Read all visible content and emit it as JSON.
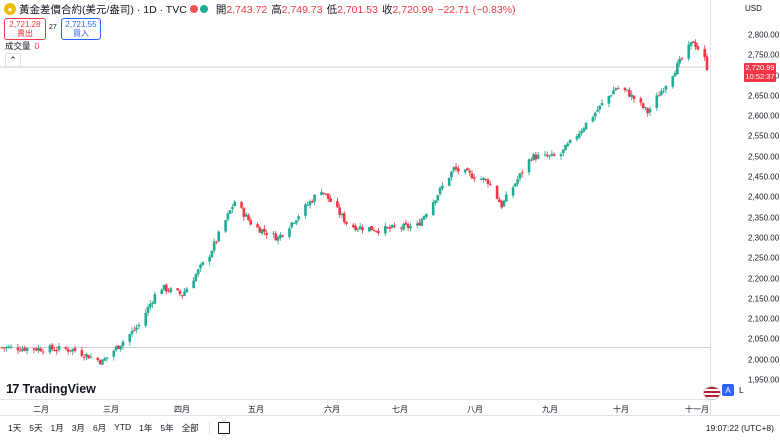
{
  "header": {
    "title": "黃金差價合約(美元/盎司) · 1D · TVC",
    "ohlc": [
      {
        "k": "開",
        "v": "2,743.72"
      },
      {
        "k": "高",
        "v": "2,749.73"
      },
      {
        "k": "低",
        "v": "2,701.53"
      },
      {
        "k": "收",
        "v": "2,720.99"
      },
      {
        "k": "",
        "v": "−22.71 (−0.83%)"
      }
    ],
    "sell_price": "2,721.28",
    "sell_label": "賣出",
    "buy_price": "2,721.55",
    "buy_label": "買入",
    "spread": "27",
    "volume_label": "成交量",
    "volume_value": "0",
    "currency": "USD"
  },
  "price_axis": {
    "ticks": [
      "2,800.00",
      "2,750.00",
      "2,700.00",
      "2,650.00",
      "2,600.00",
      "2,550.00",
      "2,500.00",
      "2,450.00",
      "2,400.00",
      "2,350.00",
      "2,300.00",
      "2,250.00",
      "2,200.00",
      "2,150.00",
      "2,100.00",
      "2,050.00",
      "2,000.00",
      "1,950.00"
    ],
    "last_price": "2,720.99",
    "countdown": "10:52:37"
  },
  "time_axis": {
    "ticks": [
      "二月",
      "三月",
      "四月",
      "五月",
      "六月",
      "七月",
      "八月",
      "九月",
      "十月",
      "十一月"
    ]
  },
  "bottom": {
    "ranges": [
      "1天",
      "5天",
      "1月",
      "3月",
      "6月",
      "YTD",
      "1年",
      "5年",
      "全部"
    ],
    "clock": "19:07:22 (UTC+8)"
  },
  "brand": "TradingView",
  "controls": {
    "a": "A",
    "l": "L"
  },
  "colors": {
    "up": "#22ab94",
    "down": "#f23645",
    "grid": "#e0e3eb"
  },
  "chart_data": {
    "type": "candlestick",
    "y_range": [
      1950,
      2800
    ],
    "anchors": [
      {
        "date": "2024-01-01",
        "price": 2030
      },
      {
        "date": "2024-02-01",
        "price": 2025
      },
      {
        "date": "2024-02-14",
        "price": 1995
      },
      {
        "date": "2024-03-01",
        "price": 2085
      },
      {
        "date": "2024-03-10",
        "price": 2180
      },
      {
        "date": "2024-03-20",
        "price": 2160
      },
      {
        "date": "2024-04-01",
        "price": 2260
      },
      {
        "date": "2024-04-12",
        "price": 2390
      },
      {
        "date": "2024-04-20",
        "price": 2330
      },
      {
        "date": "2024-05-01",
        "price": 2300
      },
      {
        "date": "2024-05-20",
        "price": 2420
      },
      {
        "date": "2024-06-01",
        "price": 2330
      },
      {
        "date": "2024-06-15",
        "price": 2320
      },
      {
        "date": "2024-07-01",
        "price": 2330
      },
      {
        "date": "2024-07-17",
        "price": 2470
      },
      {
        "date": "2024-08-01",
        "price": 2440
      },
      {
        "date": "2024-08-07",
        "price": 2380
      },
      {
        "date": "2024-08-20",
        "price": 2500
      },
      {
        "date": "2024-09-01",
        "price": 2500
      },
      {
        "date": "2024-09-26",
        "price": 2670
      },
      {
        "date": "2024-10-01",
        "price": 2660
      },
      {
        "date": "2024-10-10",
        "price": 2610
      },
      {
        "date": "2024-10-30",
        "price": 2785
      },
      {
        "date": "2024-11-04",
        "price": 2740
      },
      {
        "date": "2024-11-05",
        "price": 2721
      }
    ]
  }
}
